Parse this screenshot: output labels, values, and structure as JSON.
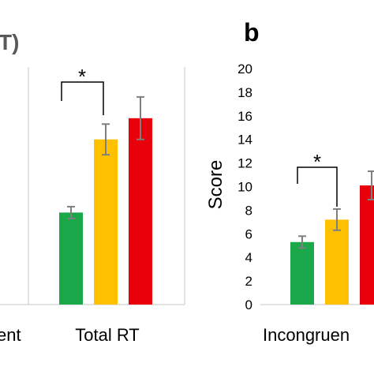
{
  "colors": {
    "green": "#1aa84b",
    "yellow": "#ffc000",
    "red": "#e8000b",
    "error_bar": "#7f7f7f",
    "axis": "#d9d9d9",
    "bracket": "#000000"
  },
  "chart_data": [
    {
      "type": "bar",
      "panel_title_fragment": "T)",
      "categories": [
        "ent",
        "Total RT"
      ],
      "series": [
        {
          "color": "#1aa84b",
          "values": [
            null,
            7.8
          ],
          "errors": [
            null,
            0.5
          ]
        },
        {
          "color": "#ffc000",
          "values": [
            null,
            14.0
          ],
          "errors": [
            null,
            1.3
          ]
        },
        {
          "color": "#e8000b",
          "values": [
            null,
            15.8
          ],
          "errors": [
            null,
            1.8
          ]
        }
      ],
      "ylim": [
        0,
        20
      ],
      "annotations": [
        {
          "text": "*",
          "between": [
            "green",
            "yellow"
          ],
          "category": "Total RT"
        }
      ],
      "grid": false
    },
    {
      "type": "bar",
      "panel_label": "b",
      "ylabel": "Score",
      "categories": [
        "Incongruen"
      ],
      "yticks": [
        "0",
        "2",
        "4",
        "6",
        "8",
        "10",
        "12",
        "14",
        "16",
        "18",
        "20"
      ],
      "ylim": [
        0,
        20
      ],
      "series": [
        {
          "color": "#1aa84b",
          "values": [
            5.3
          ],
          "errors": [
            0.5
          ]
        },
        {
          "color": "#ffc000",
          "values": [
            7.2
          ],
          "errors": [
            0.9
          ]
        },
        {
          "color": "#e8000b",
          "values": [
            10.1
          ],
          "errors": [
            1.2
          ]
        }
      ],
      "annotations": [
        {
          "text": "*",
          "between": [
            "green",
            "yellow"
          ],
          "category": "Incongruen"
        }
      ],
      "grid": false
    }
  ]
}
